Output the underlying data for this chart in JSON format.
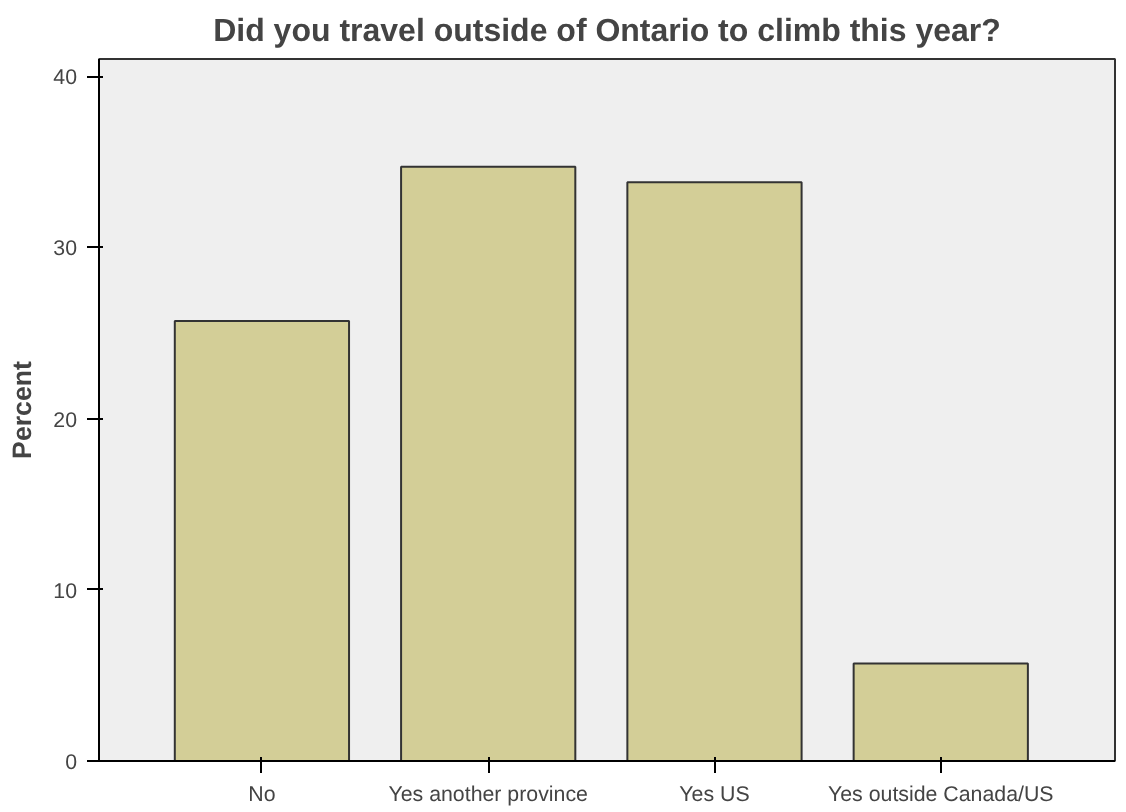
{
  "chart_data": {
    "type": "bar",
    "title": "Did you travel outside of Ontario to climb this year?",
    "ylabel": "Percent",
    "categories": [
      "No",
      "Yes another province",
      "Yes US",
      "Yes outside Canada/US"
    ],
    "values": [
      25.7,
      34.7,
      33.8,
      5.7
    ],
    "color": "#d3ce97",
    "ylim": [
      0,
      41
    ],
    "yticks": [
      0,
      10,
      20,
      30,
      40
    ],
    "grid": false
  }
}
